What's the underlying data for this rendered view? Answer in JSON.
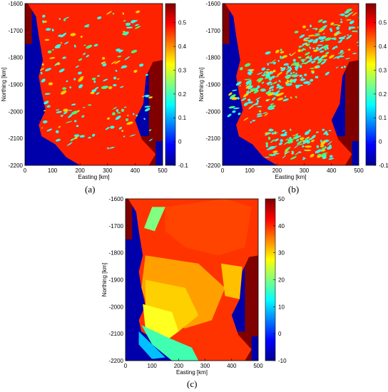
{
  "panels": [
    {
      "label": "(a)",
      "map_variant": "a",
      "xlabel": "Easting [km]",
      "ylabel": "Northing [km]",
      "xticks": [
        "0",
        "100",
        "200",
        "300",
        "400",
        "500"
      ],
      "yticks": [
        "-1600",
        "-1700",
        "-1800",
        "-1900",
        "-2000",
        "-2100",
        "-2200"
      ],
      "cbar_ticks": [
        "0.5",
        "0.4",
        "0.3",
        "0.2",
        "0.1",
        "0",
        "-0.1"
      ]
    },
    {
      "label": "(b)",
      "map_variant": "b",
      "xlabel": "Easting [km]",
      "ylabel": "Northing [km]",
      "xticks": [
        "0",
        "100",
        "200",
        "300",
        "400",
        "500"
      ],
      "yticks": [
        "-1600",
        "-1700",
        "-1800",
        "-1900",
        "-2000",
        "-2100",
        "-2200"
      ],
      "cbar_ticks": [
        "0.5",
        "0.4",
        "0.3",
        "0.2",
        "0.1",
        "0",
        "-0.1"
      ]
    },
    {
      "label": "(c)",
      "map_variant": "c",
      "xlabel": "Easting [km]",
      "ylabel": "Northing [km]",
      "xticks": [
        "0",
        "100",
        "200",
        "300",
        "400",
        "500"
      ],
      "yticks": [
        "-1600",
        "-1700",
        "-1800",
        "-1900",
        "-2000",
        "-2100",
        "-2200"
      ],
      "cbar_ticks": [
        "50",
        "40",
        "30",
        "20",
        "10",
        "0",
        "-10"
      ]
    }
  ],
  "colors": {
    "ocean": "#0000aa",
    "land_dark": "#800000",
    "red": "#ff2200",
    "cyan": "#33ffee",
    "colormap": [
      "#00008f",
      "#0000ff",
      "#0080ff",
      "#00ffff",
      "#80ff80",
      "#ffff00",
      "#ff8000",
      "#ff0000",
      "#800000"
    ]
  },
  "chart_data": [
    {
      "type": "heatmap",
      "panel": "(a)",
      "xlabel": "Easting [km]",
      "ylabel": "Northing [km]",
      "xlim": [
        0,
        500
      ],
      "ylim": [
        -2200,
        -1600
      ],
      "colorbar_range": [
        -0.1,
        0.58
      ],
      "colorbar_ticks": [
        0.5,
        0.4,
        0.3,
        0.2,
        0.1,
        0,
        -0.1
      ]
    },
    {
      "type": "heatmap",
      "panel": "(b)",
      "xlabel": "Easting [km]",
      "ylabel": "Northing [km]",
      "xlim": [
        0,
        500
      ],
      "ylim": [
        -2200,
        -1600
      ],
      "colorbar_range": [
        -0.1,
        0.58
      ],
      "colorbar_ticks": [
        0.5,
        0.4,
        0.3,
        0.2,
        0.1,
        0,
        -0.1
      ]
    },
    {
      "type": "heatmap",
      "panel": "(c)",
      "xlabel": "Easting [km]",
      "ylabel": "Northing [km]",
      "xlim": [
        0,
        500
      ],
      "ylim": [
        -2200,
        -1600
      ],
      "colorbar_range": [
        -10,
        50
      ],
      "colorbar_ticks": [
        50,
        40,
        30,
        20,
        10,
        0,
        -10
      ]
    }
  ]
}
